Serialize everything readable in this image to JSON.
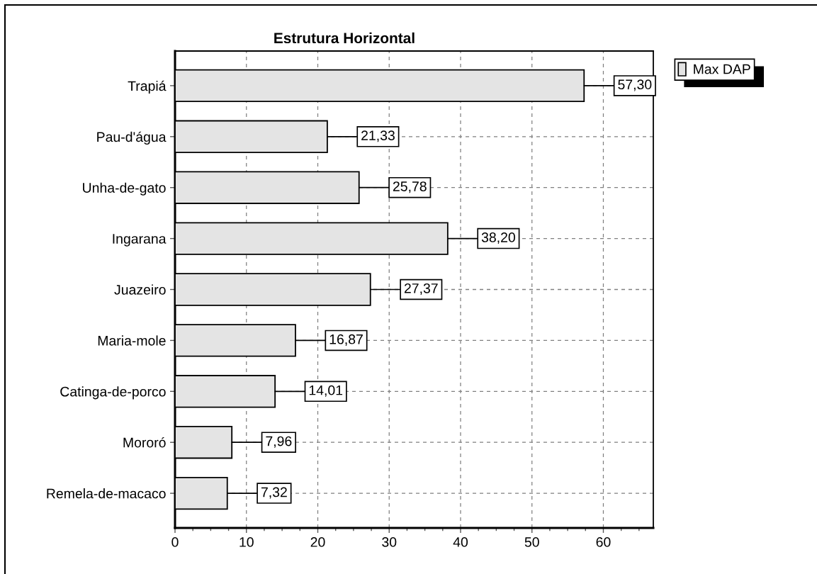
{
  "chart_data": {
    "type": "bar",
    "orientation": "horizontal",
    "title": "Estrutura Horizontal",
    "categories": [
      "Trapiá",
      "Pau-d'água",
      "Unha-de-gato",
      "Ingarana",
      "Juazeiro",
      "Maria-mole",
      "Catinga-de-porco",
      "Mororó",
      "Remela-de-macaco"
    ],
    "series": [
      {
        "name": "Max DAP",
        "color": "#e4e4e4",
        "values": [
          57.3,
          21.33,
          25.78,
          38.2,
          27.37,
          16.87,
          14.01,
          7.96,
          7.32
        ],
        "value_labels": [
          "57,30",
          "21,33",
          "25,78",
          "38,20",
          "27,37",
          "16,87",
          "14,01",
          "7,96",
          "7,32"
        ]
      }
    ],
    "xlim": [
      0,
      67
    ],
    "xticks": [
      0,
      {
        "value": 2.5,
        "label": null
      },
      {
        "value": 5,
        "label": null
      },
      {
        "value": 7.5,
        "label": null
      },
      10,
      {
        "value": 12.5,
        "label": null
      },
      {
        "value": 15,
        "label": null
      },
      {
        "value": 17.5,
        "label": null
      },
      20,
      {
        "value": 22.5,
        "label": null
      },
      {
        "value": 25,
        "label": null
      },
      {
        "value": 27.5,
        "label": null
      },
      30,
      {
        "value": 32.5,
        "label": null
      },
      {
        "value": 35,
        "label": null
      },
      {
        "value": 37.5,
        "label": null
      },
      40,
      {
        "value": 42.5,
        "label": null
      },
      {
        "value": 45,
        "label": null
      },
      {
        "value": 47.5,
        "label": null
      },
      50,
      {
        "value": 52.5,
        "label": null
      },
      {
        "value": 55,
        "label": null
      },
      {
        "value": 57.5,
        "label": null
      },
      60,
      {
        "value": 62.5,
        "label": null
      },
      {
        "value": 65,
        "label": null
      }
    ],
    "grid": true,
    "legend": "top right"
  }
}
